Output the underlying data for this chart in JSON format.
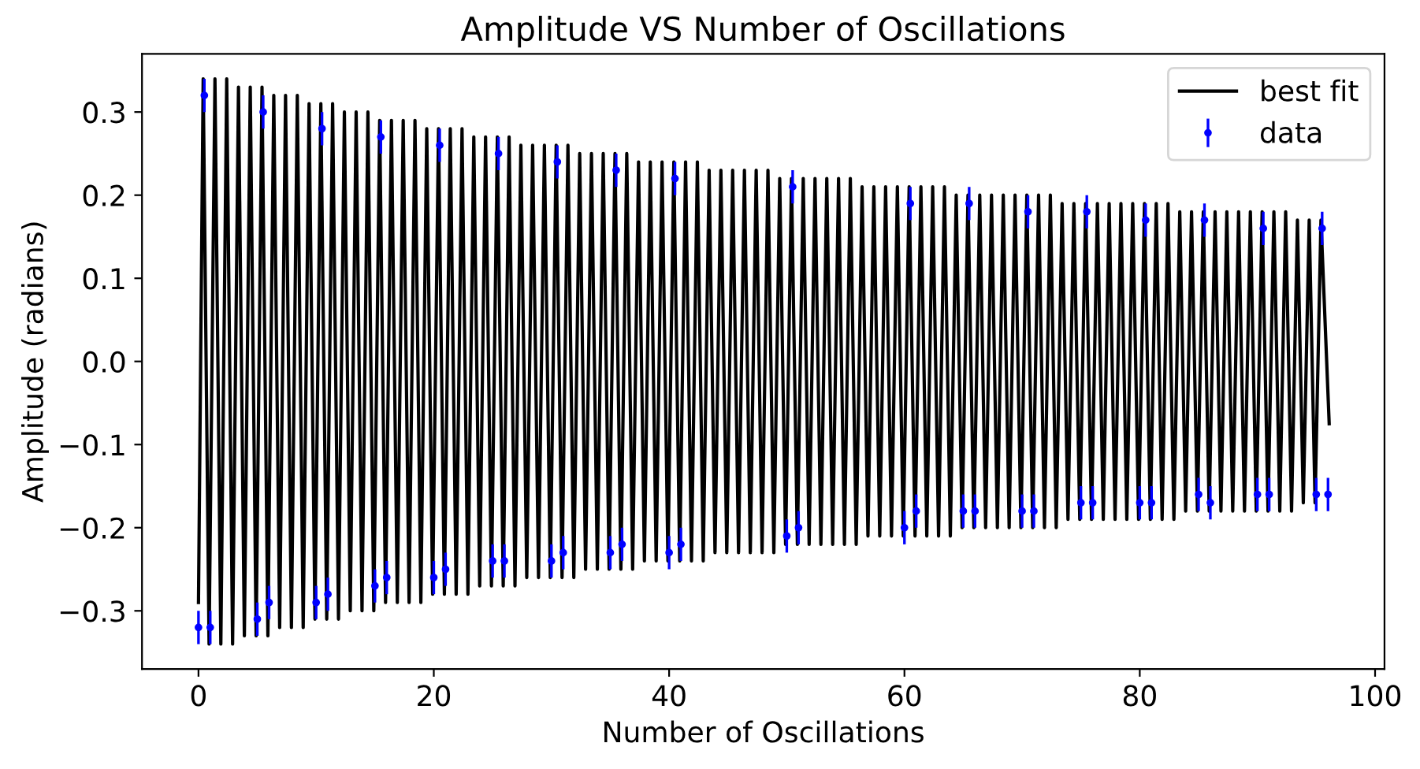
{
  "chart_data": {
    "type": "line",
    "title": "Amplitude VS Number of Oscillations",
    "xlabel": "Number of Oscillations",
    "ylabel": "Amplitude (radians)",
    "xlim": [
      -4.8,
      100.8
    ],
    "xticks": [
      0,
      20,
      40,
      60,
      80,
      100
    ],
    "ylim": [
      -0.37,
      0.37
    ],
    "yticks": [
      {
        "value": -0.3,
        "label": "−0.3"
      },
      {
        "value": -0.2,
        "label": "−0.2"
      },
      {
        "value": -0.1,
        "label": "−0.1"
      },
      {
        "value": 0,
        "label": "0.0"
      },
      {
        "value": 0.1,
        "label": "0.1"
      },
      {
        "value": 0.2,
        "label": "0.2"
      },
      {
        "value": 0.3,
        "label": "0.3"
      }
    ],
    "grid": false,
    "legend": "top right",
    "series": [
      {
        "name": "best fit",
        "color": "#000000",
        "line_style": "solid",
        "marker": "none",
        "x": [
          0,
          0.4,
          0.9,
          1.4,
          1.9,
          2.4,
          2.9,
          3.4,
          3.9,
          4.4,
          4.9,
          5.4,
          5.9,
          6.4,
          6.9,
          7.4,
          7.9,
          8.4,
          8.9,
          9.4,
          9.9,
          10.4,
          10.9,
          11.4,
          11.9,
          12.4,
          12.9,
          13.4,
          13.9,
          14.4,
          14.9,
          15.4,
          15.9,
          16.4,
          16.9,
          17.4,
          17.9,
          18.4,
          18.9,
          19.4,
          19.9,
          20.4,
          20.9,
          21.4,
          21.9,
          22.4,
          22.9,
          23.4,
          23.9,
          24.4,
          24.9,
          25.4,
          25.9,
          26.4,
          26.9,
          27.4,
          27.9,
          28.4,
          28.9,
          29.4,
          29.9,
          30.4,
          30.9,
          31.4,
          31.9,
          32.4,
          32.9,
          33.4,
          33.9,
          34.4,
          34.9,
          35.4,
          35.9,
          36.4,
          36.9,
          37.4,
          37.9,
          38.4,
          38.9,
          39.4,
          39.9,
          40.4,
          40.9,
          41.4,
          41.9,
          42.4,
          42.9,
          43.4,
          43.9,
          44.4,
          44.9,
          45.4,
          45.9,
          46.4,
          46.9,
          47.4,
          47.9,
          48.4,
          48.9,
          49.4,
          49.9,
          50.4,
          50.9,
          51.4,
          51.9,
          52.4,
          52.9,
          53.4,
          53.9,
          54.4,
          54.9,
          55.4,
          55.9,
          56.4,
          56.9,
          57.4,
          57.9,
          58.4,
          58.9,
          59.4,
          59.9,
          60.4,
          60.9,
          61.4,
          61.9,
          62.4,
          62.9,
          63.4,
          63.9,
          64.4,
          64.9,
          65.4,
          65.9,
          66.4,
          66.9,
          67.4,
          67.9,
          68.4,
          68.9,
          69.4,
          69.9,
          70.4,
          70.9,
          71.4,
          71.9,
          72.4,
          72.9,
          73.4,
          73.9,
          74.4,
          74.9,
          75.4,
          75.9,
          76.4,
          76.9,
          77.4,
          77.9,
          78.4,
          78.9,
          79.4,
          79.9,
          80.4,
          80.9,
          81.4,
          81.9,
          82.4,
          82.9,
          83.4,
          83.9,
          84.4,
          84.9,
          85.4,
          85.9,
          86.4,
          86.9,
          87.4,
          87.9,
          88.4,
          88.9,
          89.4,
          89.9,
          90.4,
          90.9,
          91.4,
          91.9,
          92.4,
          92.9,
          93.4,
          93.9,
          94.4,
          94.9,
          95.4,
          96.1
        ],
        "values": [
          -0.29,
          0.34,
          -0.34,
          0.34,
          -0.34,
          0.34,
          -0.34,
          0.33,
          -0.33,
          0.33,
          -0.33,
          0.33,
          -0.33,
          0.32,
          -0.32,
          0.32,
          -0.32,
          0.32,
          -0.32,
          0.31,
          -0.31,
          0.31,
          -0.31,
          0.31,
          -0.31,
          0.3,
          -0.3,
          0.3,
          -0.3,
          0.3,
          -0.3,
          0.29,
          -0.29,
          0.29,
          -0.29,
          0.29,
          -0.29,
          0.29,
          -0.29,
          0.28,
          -0.28,
          0.28,
          -0.28,
          0.28,
          -0.28,
          0.28,
          -0.28,
          0.27,
          -0.27,
          0.27,
          -0.27,
          0.27,
          -0.27,
          0.27,
          -0.27,
          0.26,
          -0.26,
          0.26,
          -0.26,
          0.26,
          -0.26,
          0.26,
          -0.26,
          0.26,
          -0.26,
          0.25,
          -0.25,
          0.25,
          -0.25,
          0.25,
          -0.25,
          0.25,
          -0.25,
          0.25,
          -0.25,
          0.24,
          -0.24,
          0.24,
          -0.24,
          0.24,
          -0.24,
          0.24,
          -0.24,
          0.24,
          -0.24,
          0.24,
          -0.24,
          0.23,
          -0.23,
          0.23,
          -0.23,
          0.23,
          -0.23,
          0.23,
          -0.23,
          0.23,
          -0.23,
          0.23,
          -0.23,
          0.22,
          -0.22,
          0.22,
          -0.22,
          0.22,
          -0.22,
          0.22,
          -0.22,
          0.22,
          -0.22,
          0.22,
          -0.22,
          0.22,
          -0.22,
          0.21,
          -0.21,
          0.21,
          -0.21,
          0.21,
          -0.21,
          0.21,
          -0.21,
          0.21,
          -0.21,
          0.21,
          -0.21,
          0.21,
          -0.21,
          0.21,
          -0.21,
          0.2,
          -0.2,
          0.2,
          -0.2,
          0.2,
          -0.2,
          0.2,
          -0.2,
          0.2,
          -0.2,
          0.2,
          -0.2,
          0.2,
          -0.2,
          0.2,
          -0.2,
          0.2,
          -0.2,
          0.19,
          -0.19,
          0.19,
          -0.19,
          0.19,
          -0.19,
          0.19,
          -0.19,
          0.19,
          -0.19,
          0.19,
          -0.19,
          0.19,
          -0.19,
          0.19,
          -0.19,
          0.19,
          -0.19,
          0.19,
          -0.19,
          0.18,
          -0.18,
          0.18,
          -0.18,
          0.18,
          -0.18,
          0.18,
          -0.18,
          0.18,
          -0.18,
          0.18,
          -0.18,
          0.18,
          -0.18,
          0.18,
          -0.18,
          0.18,
          -0.18,
          0.18,
          -0.18,
          0.17,
          -0.17,
          0.17,
          -0.17,
          0.17,
          -0.075
        ]
      },
      {
        "name": "data",
        "type": "scatter",
        "color": "#0000ff",
        "marker": "circle",
        "x": [
          0,
          0.5,
          1,
          5,
          5.5,
          6,
          10,
          10.5,
          11,
          15,
          15.5,
          16,
          20,
          20.5,
          21,
          25,
          25.5,
          26,
          30,
          30.5,
          31,
          35,
          35.5,
          36,
          40,
          40.5,
          41,
          50,
          50.5,
          51,
          60,
          60.5,
          61,
          65,
          65.5,
          66,
          70,
          70.5,
          71,
          75,
          75.5,
          76,
          80,
          80.5,
          81,
          85,
          85.5,
          86,
          90,
          90.5,
          91,
          95,
          95.5,
          96
        ],
        "values": [
          -0.32,
          0.32,
          -0.32,
          -0.31,
          0.3,
          -0.29,
          -0.29,
          0.28,
          -0.28,
          -0.27,
          0.27,
          -0.26,
          -0.26,
          0.26,
          -0.25,
          -0.24,
          0.25,
          -0.24,
          -0.24,
          0.24,
          -0.23,
          -0.23,
          0.23,
          -0.22,
          -0.23,
          0.22,
          -0.22,
          -0.21,
          0.21,
          -0.2,
          -0.2,
          0.19,
          -0.18,
          -0.18,
          0.19,
          -0.18,
          -0.18,
          0.18,
          -0.18,
          -0.17,
          0.18,
          -0.17,
          -0.17,
          0.17,
          -0.17,
          -0.16,
          0.17,
          -0.17,
          -0.16,
          0.16,
          -0.16,
          -0.16,
          0.16,
          -0.16
        ],
        "errors": [
          0.02,
          0.02,
          0.02,
          0.02,
          0.02,
          0.02,
          0.02,
          0.02,
          0.02,
          0.02,
          0.02,
          0.02,
          0.02,
          0.02,
          0.02,
          0.02,
          0.02,
          0.02,
          0.02,
          0.02,
          0.02,
          0.02,
          0.02,
          0.02,
          0.02,
          0.02,
          0.02,
          0.02,
          0.02,
          0.02,
          0.02,
          0.02,
          0.02,
          0.02,
          0.02,
          0.02,
          0.02,
          0.02,
          0.02,
          0.02,
          0.02,
          0.02,
          0.02,
          0.02,
          0.02,
          0.02,
          0.02,
          0.02,
          0.02,
          0.02,
          0.02,
          0.02,
          0.02,
          0.02
        ]
      }
    ]
  }
}
